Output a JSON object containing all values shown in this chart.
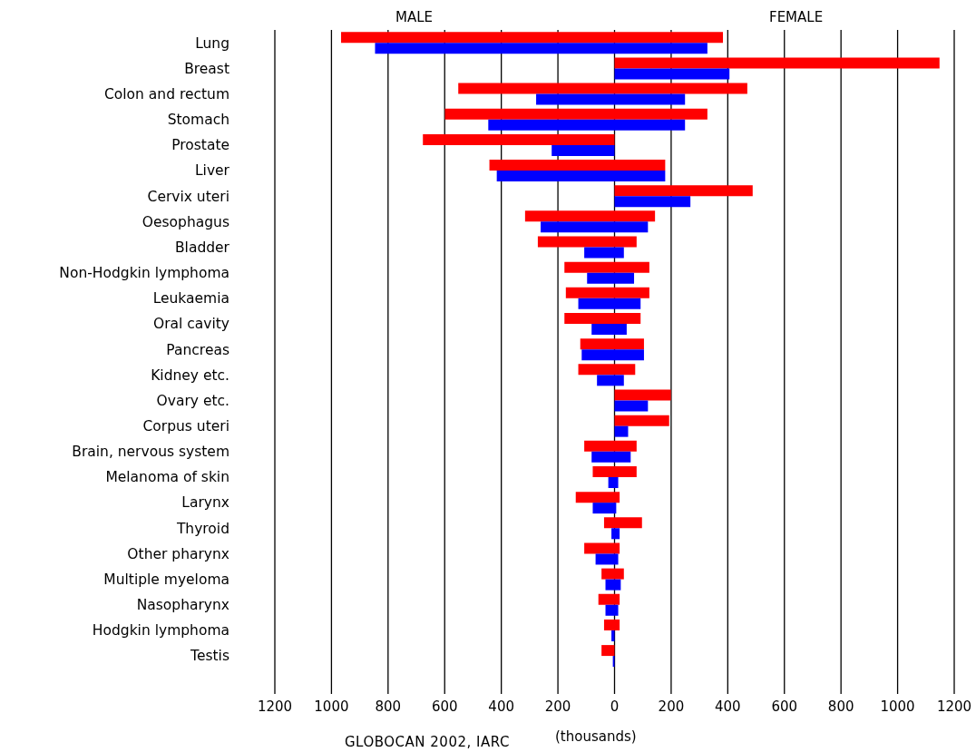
{
  "chart_data": {
    "type": "bar",
    "orientation": "horizontal",
    "categories": [
      "Lung",
      "Breast",
      "Colon and rectum",
      "Stomach",
      "Prostate",
      "Liver",
      "Cervix uteri",
      "Oesophagus",
      "Bladder",
      "Non-Hodgkin lymphoma",
      "Leukaemia",
      "Oral cavity",
      "Pancreas",
      "Kidney etc.",
      "Ovary etc.",
      "Corpus uteri",
      "Brain, nervous system",
      "Melanoma of skin",
      "Larynx",
      "Thyroid",
      "Other pharynx",
      "Multiple myeloma",
      "Nasopharynx",
      "Hodgkin lymphoma",
      "Testis"
    ],
    "series": [
      {
        "color": "#ff0000",
        "base": [
          -966,
          0,
          -552,
          -599,
          -677,
          -442,
          0,
          -316,
          -271,
          -177,
          -172,
          -177,
          -121,
          -128,
          0,
          0,
          -107,
          -77,
          -137,
          -37,
          -107,
          -46,
          -57,
          -37,
          -46
        ],
        "values": [
          1349,
          1148,
          1021,
          927,
          677,
          621,
          488,
          459,
          349,
          300,
          295,
          269,
          225,
          201,
          199,
          193,
          185,
          155,
          155,
          134,
          125,
          79,
          75,
          55,
          46
        ]
      },
      {
        "color": "#0000ff",
        "base": [
          -846,
          0,
          -277,
          -446,
          -222,
          -416,
          0,
          -261,
          -107,
          -97,
          -128,
          -81,
          -116,
          -62,
          0,
          0,
          -81,
          -22,
          -77,
          -11,
          -67,
          -32,
          -32,
          -11,
          -6
        ],
        "values": [
          1174,
          406,
          526,
          695,
          222,
          595,
          268,
          379,
          140,
          166,
          220,
          124,
          220,
          95,
          118,
          48,
          138,
          35,
          83,
          29,
          80,
          54,
          45,
          11,
          6
        ]
      }
    ],
    "xlim": [
      -1200,
      1200
    ],
    "xticks": [
      {
        "value": -1200,
        "label": "1200"
      },
      {
        "value": -1000,
        "label": "1000"
      },
      {
        "value": -800,
        "label": "800"
      },
      {
        "value": -600,
        "label": "600"
      },
      {
        "value": -400,
        "label": "400"
      },
      {
        "value": -200,
        "label": "200"
      },
      0,
      200,
      400,
      600,
      800,
      1000,
      1200
    ],
    "xlabel": "(thousands)",
    "grid": "x",
    "annotations": [
      "MALE",
      "FEMALE",
      "GLOBOCAN 2002, IARC"
    ]
  }
}
